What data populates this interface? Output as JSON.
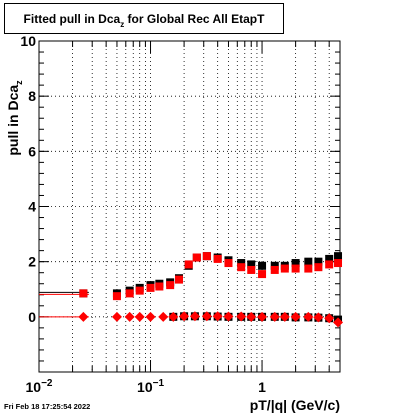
{
  "title": {
    "main": "Fitted pull in Dca",
    "subscript": "z",
    "rest": " for Global Rec All EtapT"
  },
  "timestamp": "Fri Feb 18 17:25:54 2022",
  "chart_data": {
    "type": "scatter",
    "title": "Fitted pull in Dca_z for Global Rec All EtapT",
    "xlabel": "pT/|q| (GeV/c)",
    "ylabel": "pull in Dca_z",
    "x_scale": "log",
    "xlim": [
      0.01,
      5.0
    ],
    "ylim": [
      -2,
      10
    ],
    "grid": true,
    "x_tick_labels": [
      "10^-2",
      "10^-1",
      "1"
    ],
    "y_tick_labels": [
      "0",
      "2",
      "4",
      "6",
      "8",
      "10"
    ],
    "series": [
      {
        "color": "#000000",
        "marker": "square",
        "x": [
          0.025,
          0.05,
          0.065,
          0.08,
          0.1,
          0.12,
          0.15,
          0.18,
          0.22,
          0.26,
          0.32,
          0.4,
          0.5,
          0.65,
          0.8,
          1.0,
          1.3,
          1.6,
          2.0,
          2.6,
          3.2,
          4.0,
          4.8
        ],
        "y": [
          0.85,
          0.85,
          0.95,
          1.05,
          1.15,
          1.2,
          1.25,
          1.4,
          1.85,
          2.15,
          2.2,
          2.15,
          2.05,
          1.95,
          1.9,
          1.85,
          1.85,
          1.85,
          1.95,
          2.0,
          2.0,
          2.1,
          2.2
        ]
      },
      {
        "color": "#ff0000",
        "marker": "square",
        "x": [
          0.025,
          0.05,
          0.065,
          0.08,
          0.1,
          0.12,
          0.15,
          0.18,
          0.22,
          0.26,
          0.32,
          0.4,
          0.5,
          0.65,
          0.8,
          1.0,
          1.3,
          1.6,
          2.0,
          2.6,
          3.2,
          4.0,
          4.8
        ],
        "y": [
          0.85,
          0.75,
          0.85,
          0.95,
          1.05,
          1.1,
          1.15,
          1.35,
          1.9,
          2.15,
          2.2,
          2.1,
          1.95,
          1.8,
          1.7,
          1.55,
          1.7,
          1.75,
          1.75,
          1.75,
          1.8,
          1.9,
          1.95
        ]
      },
      {
        "color": "#000000",
        "marker": "square",
        "x": [
          0.16,
          0.2,
          0.25,
          0.32,
          0.4,
          0.5,
          0.65,
          0.8,
          1.0,
          1.3,
          1.6,
          2.0,
          2.6,
          3.2,
          4.0,
          4.8
        ],
        "y": [
          0.0,
          0.02,
          0.02,
          0.02,
          0.01,
          0.0,
          0.0,
          0.0,
          0.0,
          0.0,
          0.0,
          -0.02,
          -0.02,
          -0.03,
          -0.05,
          -0.1
        ]
      },
      {
        "color": "#ff0000",
        "marker": "diamond",
        "x": [
          0.025,
          0.05,
          0.065,
          0.08,
          0.1,
          0.13,
          0.16,
          0.2,
          0.25,
          0.32,
          0.4,
          0.5,
          0.65,
          0.8,
          1.0,
          1.3,
          1.6,
          2.0,
          2.6,
          3.2,
          4.0,
          4.8
        ],
        "y": [
          0.0,
          0.0,
          0.0,
          0.0,
          0.0,
          0.0,
          0.0,
          0.02,
          0.02,
          0.02,
          0.02,
          0.01,
          0.01,
          0.0,
          0.0,
          0.0,
          0.0,
          0.0,
          0.0,
          -0.02,
          -0.05,
          -0.2
        ]
      }
    ]
  }
}
